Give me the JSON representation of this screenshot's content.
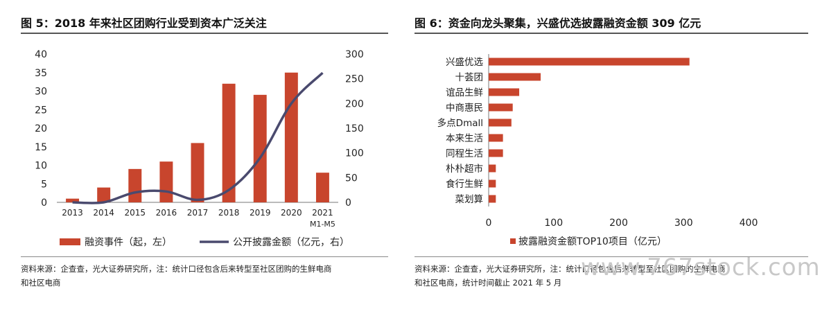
{
  "left": {
    "title": "图 5：2018 年来社区团购行业受到资本广泛关注",
    "source_line1": "资料来源：企查查，光大证券研究所，注：统计口径包含后来转型至社区团购的生鲜电商",
    "source_line2": "和社区电商"
  },
  "right": {
    "title": "图 6：资金向龙头聚集，兴盛优选披露融资金额 309 亿元",
    "source_line1": "资料来源：企查查，光大证券研究所，注：统计口径包含后来转型至社区团购的生鲜电商",
    "source_line2": "和社区电商，统计时间截止 2021 年 5 月"
  },
  "watermark": "www.767stock.com",
  "chart_data": [
    {
      "type": "bar",
      "categories": [
        "2013",
        "2014",
        "2015",
        "2016",
        "2017",
        "2018",
        "2019",
        "2020",
        "2021"
      ],
      "category_sublabels": [
        "",
        "",
        "",
        "",
        "",
        "",
        "",
        "",
        "M1-M5"
      ],
      "series": [
        {
          "name": "融资事件（起，左）",
          "type": "bar",
          "axis": "left",
          "color": "#c8452d",
          "values": [
            1,
            4,
            9,
            11,
            16,
            32,
            29,
            35,
            8
          ]
        },
        {
          "name": "公开披露金额（亿元，右）",
          "type": "line",
          "axis": "right",
          "color": "#4a4a6e",
          "values": [
            0,
            0,
            20,
            22,
            5,
            25,
            90,
            200,
            262
          ]
        }
      ],
      "ylim_left": [
        0,
        40
      ],
      "yticks_left": [
        0,
        5,
        10,
        15,
        20,
        25,
        30,
        35,
        40
      ],
      "ylim_right": [
        0,
        300
      ],
      "yticks_right": [
        0,
        50,
        100,
        150,
        200,
        250,
        300
      ],
      "legend_position": "bottom"
    },
    {
      "type": "bar",
      "orientation": "horizontal",
      "categories": [
        "兴盛优选",
        "十荟团",
        "谊品生鲜",
        "中商惠民",
        "多点Dmall",
        "本来生活",
        "同程生活",
        "朴朴超市",
        "食行生鲜",
        "菜划算"
      ],
      "series": [
        {
          "name": "披露融资金额TOP10项目（亿元）",
          "color": "#c8452d",
          "values": [
            309,
            80,
            47,
            37,
            35,
            22,
            22,
            11,
            11,
            11
          ]
        }
      ],
      "xlim": [
        0,
        400
      ],
      "xticks": [
        0,
        100,
        200,
        300,
        400
      ],
      "legend_position": "bottom"
    }
  ]
}
